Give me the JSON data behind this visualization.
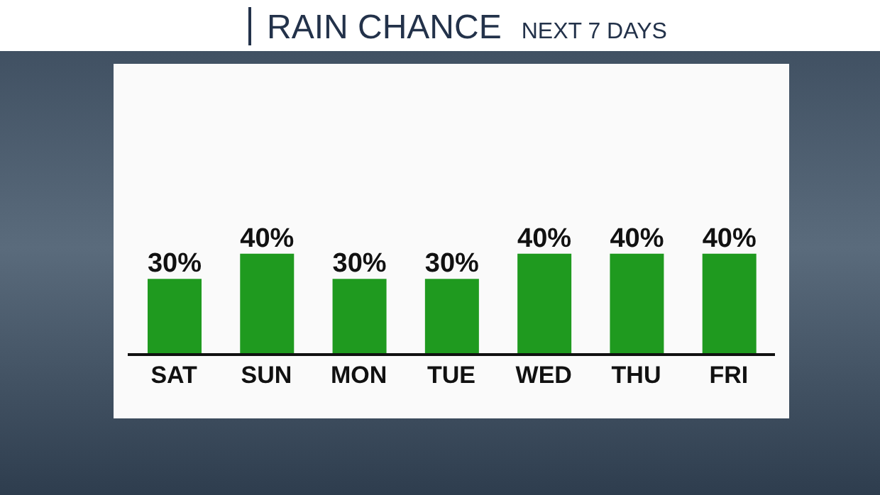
{
  "chart_data": {
    "type": "bar",
    "title": "RAIN CHANCE",
    "subtitle": "NEXT 7 DAYS",
    "categories": [
      "SAT",
      "SUN",
      "MON",
      "TUE",
      "WED",
      "THU",
      "FRI"
    ],
    "values": [
      30,
      40,
      30,
      30,
      40,
      40,
      40
    ],
    "color": "#1f9a1f",
    "data_labels": true,
    "value_labels": [
      "30%",
      "40%",
      "30%",
      "30%",
      "40%",
      "40%",
      "40%"
    ]
  }
}
